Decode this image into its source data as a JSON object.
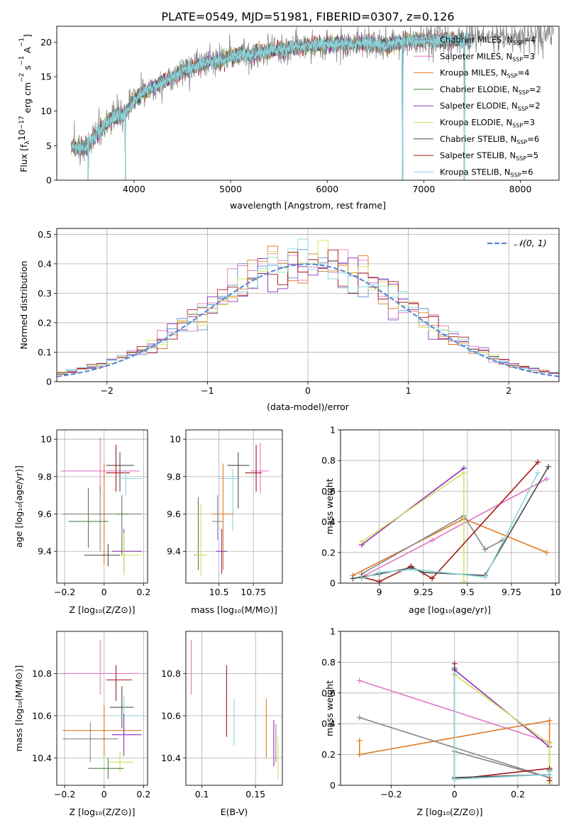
{
  "figure_title": "PLATE=0549, MJD=51981, FIBERID=0307, z=0.126",
  "colors": {
    "Chabrier MILES": "#888888",
    "Salpeter MILES": "#e377c2",
    "Kroupa MILES": "#e07b24",
    "Chabrier ELODIE": "#4f7f4f",
    "Salpeter ELODIE": "#8c2fb5",
    "Kroupa ELODIE": "#cfe35b",
    "Chabrier STELIB": "#4d4d4d",
    "Salpeter STELIB": "#a41a1a",
    "Kroupa STELIB": "#8ad6dc",
    "normal": "#5b8ad6"
  },
  "chart_data": [
    {
      "id": "spectrum",
      "type": "line",
      "xlabel": "wavelength [Angstrom, rest frame]",
      "ylabel": "Flux [f_λ10^-17 erg cm^-2 s^-1 A^-1]",
      "xlim": [
        3200,
        8400
      ],
      "ylim": [
        0,
        22.3
      ],
      "xticks": [
        4000,
        5000,
        6000,
        7000,
        8000
      ],
      "yticks": [
        0,
        5,
        10,
        15,
        20
      ],
      "legend": "top-right",
      "legend_entries": [
        {
          "base": "Chabrier MILES, N",
          "sub": "SSP",
          "tail": "=4",
          "color": "Chabrier MILES"
        },
        {
          "base": "Salpeter MILES, N",
          "sub": "SSP",
          "tail": "=3",
          "color": "Salpeter MILES"
        },
        {
          "base": "Kroupa MILES, N",
          "sub": "SSP",
          "tail": "=4",
          "color": "Kroupa MILES"
        },
        {
          "base": "Chabrier ELODIE, N",
          "sub": "SSP",
          "tail": "=2",
          "color": "Chabrier ELODIE"
        },
        {
          "base": "Salpeter ELODIE, N",
          "sub": "SSP",
          "tail": "=2",
          "color": "Salpeter ELODIE"
        },
        {
          "base": "Kroupa ELODIE, N",
          "sub": "SSP",
          "tail": "=3",
          "color": "Kroupa ELODIE"
        },
        {
          "base": "Chabrier STELIB, N",
          "sub": "SSP",
          "tail": "=6",
          "color": "Chabrier STELIB"
        },
        {
          "base": "Salpeter STELIB, N",
          "sub": "SSP",
          "tail": "=5",
          "color": "Salpeter STELIB"
        },
        {
          "base": "Kroupa STELIB, N",
          "sub": "SSP",
          "tail": "=6",
          "color": "Kroupa STELIB"
        }
      ],
      "continuum": [
        [
          3350,
          4.8
        ],
        [
          3500,
          4.6
        ],
        [
          3600,
          6.5
        ],
        [
          3700,
          8.0
        ],
        [
          3800,
          9.2
        ],
        [
          3900,
          9.5
        ],
        [
          4000,
          11.5
        ],
        [
          4100,
          12.8
        ],
        [
          4200,
          13.5
        ],
        [
          4300,
          14.2
        ],
        [
          4400,
          15.0
        ],
        [
          4500,
          15.8
        ],
        [
          4600,
          16.3
        ],
        [
          4700,
          16.8
        ],
        [
          4800,
          17.2
        ],
        [
          4900,
          17.3
        ],
        [
          5000,
          17.9
        ],
        [
          5100,
          18.2
        ],
        [
          5200,
          18.1
        ],
        [
          5300,
          18.4
        ],
        [
          5400,
          18.7
        ],
        [
          5500,
          19.0
        ],
        [
          5600,
          19.2
        ],
        [
          5800,
          19.4
        ],
        [
          6000,
          19.7
        ],
        [
          6200,
          19.7
        ],
        [
          6400,
          19.9
        ],
        [
          6600,
          19.5
        ],
        [
          6800,
          20.1
        ],
        [
          7000,
          20.2
        ],
        [
          7200,
          20.3
        ],
        [
          7400,
          20.3
        ],
        [
          7600,
          20.6
        ],
        [
          7800,
          20.7
        ],
        [
          8000,
          20.7
        ],
        [
          8200,
          21.0
        ],
        [
          8350,
          21.2
        ]
      ],
      "data_end_x": 7480,
      "gaps": [
        {
          "x": 3525,
          "min": 0
        },
        {
          "x": 3910,
          "min": 0
        },
        {
          "x": 6780,
          "min": 0
        },
        {
          "x": 7420,
          "min": 0
        }
      ]
    },
    {
      "id": "residuals",
      "type": "histogram",
      "xlabel": "(data-model)/error",
      "ylabel": "Normed distribution",
      "xlim": [
        -2.5,
        2.5
      ],
      "ylim": [
        0,
        0.52
      ],
      "xticks": [
        -2,
        -1,
        0,
        1,
        2
      ],
      "yticks": [
        0.0,
        0.1,
        0.2,
        0.3,
        0.4,
        0.5
      ],
      "grid": true,
      "legend": "top-right",
      "legend_label": "N(0,1)",
      "bin_width": 0.1,
      "curve": "standard normal"
    },
    {
      "id": "age_vs_Z",
      "type": "errorbar",
      "xlabel": "Z [log10(Z/Z⊙)]",
      "ylabel": "age [log10(age/yr)]",
      "xlim": [
        -0.24,
        0.22
      ],
      "ylim": [
        9.23,
        10.05
      ],
      "xticks": [
        -0.2,
        0.0,
        0.2
      ],
      "yticks": [
        9.4,
        9.6,
        9.8,
        10.0
      ],
      "grid": true,
      "points": [
        {
          "s": "Salpeter MILES",
          "x": -0.02,
          "xerr": [
            0.2,
            0.2
          ],
          "y": 9.83,
          "yerr": [
            0.12,
            0.18
          ]
        },
        {
          "s": "Chabrier STELIB",
          "x": 0.08,
          "xerr": [
            0.07,
            0.07
          ],
          "y": 9.86,
          "yerr": [
            0.14,
            0.07
          ]
        },
        {
          "s": "Salpeter STELIB",
          "x": 0.06,
          "xerr": [
            0.05,
            0.07
          ],
          "y": 9.82,
          "yerr": [
            0.1,
            0.15
          ]
        },
        {
          "s": "Kroupa STELIB",
          "x": 0.11,
          "xerr": [
            0.03,
            0.08
          ],
          "y": 9.79,
          "yerr": [
            0.09,
            0.05
          ]
        },
        {
          "s": "Kroupa MILES",
          "x": 0.0,
          "xerr": [
            0.21,
            0.19
          ],
          "y": 9.6,
          "yerr": [
            0.27,
            0.27
          ]
        },
        {
          "s": "Chabrier MILES",
          "x": -0.02,
          "xerr": [
            0.19,
            0.21
          ],
          "y": 9.6,
          "yerr": [
            0.2,
            0.15
          ]
        },
        {
          "s": "Chabrier ELODIE",
          "x": 0.09,
          "xerr": [
            0.03,
            0.03
          ],
          "y": 9.6,
          "yerr": [
            0.22,
            0.1
          ]
        },
        {
          "s": "Chabrier ELODIE",
          "x": -0.08,
          "xerr": [
            0.1,
            0.1
          ],
          "y": 9.56,
          "yerr": [
            0.14,
            0.18
          ]
        },
        {
          "s": "Salpeter ELODIE",
          "x": 0.1,
          "xerr": [
            0.06,
            0.09
          ],
          "y": 9.4,
          "yerr": [
            0.12,
            0.12
          ]
        },
        {
          "s": "Kroupa ELODIE",
          "x": 0.1,
          "xerr": [
            0.07,
            0.09
          ],
          "y": 9.38,
          "yerr": [
            0.11,
            0.12
          ]
        },
        {
          "s": "Chabrier STELIB",
          "x": 0.02,
          "xerr": [
            0.12,
            0.06
          ],
          "y": 9.38,
          "yerr": [
            0.06,
            0.06
          ]
        }
      ]
    },
    {
      "id": "age_vs_mass",
      "type": "errorbar",
      "xlabel": "mass [log10(M/M⊙)]",
      "xlim": [
        10.26,
        10.96
      ],
      "ylim": [
        9.23,
        10.05
      ],
      "xticks": [
        10.5,
        10.75
      ],
      "yticks": [
        9.4,
        9.6,
        9.8,
        10.0
      ],
      "grid": true,
      "points": [
        {
          "s": "Salpeter MILES",
          "x": 10.8,
          "xerr": [
            0.07,
            0.06
          ],
          "y": 9.83,
          "yerr": [
            0.12,
            0.15
          ]
        },
        {
          "s": "Salpeter STELIB",
          "x": 10.77,
          "xerr": [
            0.08,
            0.04
          ],
          "y": 9.82,
          "yerr": [
            0.1,
            0.15
          ]
        },
        {
          "s": "Chabrier STELIB",
          "x": 10.64,
          "xerr": [
            0.08,
            0.08
          ],
          "y": 9.86,
          "yerr": [
            0.23,
            0.07
          ]
        },
        {
          "s": "Kroupa STELIB",
          "x": 10.6,
          "xerr": [
            0.1,
            0.05
          ],
          "y": 9.79,
          "yerr": [
            0.28,
            0.05
          ]
        },
        {
          "s": "Kroupa MILES",
          "x": 10.53,
          "xerr": [
            0.08,
            0.08
          ],
          "y": 9.6,
          "yerr": [
            0.3,
            0.27
          ]
        },
        {
          "s": "Chabrier MILES",
          "x": 10.49,
          "xerr": [
            0.04,
            0.04
          ],
          "y": 9.56,
          "yerr": [
            0.1,
            0.14
          ]
        },
        {
          "s": "Salpeter ELODIE",
          "x": 10.52,
          "xerr": [
            0.04,
            0.04
          ],
          "y": 9.4,
          "yerr": [
            0.12,
            0.12
          ]
        },
        {
          "s": "Chabrier ELODIE",
          "x": 10.35,
          "xerr": [
            0.03,
            0.03
          ],
          "y": 9.38,
          "yerr": [
            0.08,
            0.31
          ]
        },
        {
          "s": "Kroupa ELODIE",
          "x": 10.37,
          "xerr": [
            0.04,
            0.04
          ],
          "y": 9.38,
          "yerr": [
            0.11,
            0.27
          ]
        }
      ]
    },
    {
      "id": "weight_vs_age",
      "type": "line",
      "xlabel": "age [log10(age/yr)]",
      "ylabel": "mass weight",
      "xlim": [
        8.78,
        10.02
      ],
      "ylim": [
        0,
        1.0
      ],
      "xticks": [
        9.0,
        9.25,
        9.5,
        9.75,
        10.0
      ],
      "yticks": [
        0.0,
        0.2,
        0.4,
        0.6,
        0.8,
        1.0
      ],
      "grid": true,
      "series": [
        {
          "s": "Salpeter MILES",
          "x": [
            8.9,
            9.3,
            9.95
          ],
          "y": [
            0.04,
            0.28,
            0.68
          ]
        },
        {
          "s": "Kroupa MILES",
          "x": [
            8.85,
            9.48,
            9.95
          ],
          "y": [
            0.05,
            0.42,
            0.2
          ]
        },
        {
          "s": "Chabrier MILES",
          "x": [
            8.9,
            9.48,
            9.6,
            9.7
          ],
          "y": [
            0.06,
            0.44,
            0.22,
            0.28
          ]
        },
        {
          "s": "Salpeter ELODIE",
          "x": [
            8.9,
            9.48
          ],
          "y": [
            0.25,
            0.75
          ]
        },
        {
          "s": "Kroupa ELODIE",
          "x": [
            8.9,
            9.48,
            9.48
          ],
          "y": [
            0.27,
            0.72,
            0.01
          ]
        },
        {
          "s": "Salpeter STELIB",
          "x": [
            8.9,
            9.0,
            9.18,
            9.3,
            9.9
          ],
          "y": [
            0.04,
            0.01,
            0.11,
            0.03,
            0.79
          ]
        },
        {
          "s": "Chabrier STELIB",
          "x": [
            8.85,
            9.0,
            9.18,
            9.25,
            9.6,
            9.96
          ],
          "y": [
            0.03,
            0.06,
            0.1,
            0.07,
            0.05,
            0.76
          ]
        },
        {
          "s": "Kroupa STELIB",
          "x": [
            8.9,
            9.0,
            9.2,
            9.6,
            9.9
          ],
          "y": [
            0.03,
            0.07,
            0.09,
            0.04,
            0.72
          ]
        }
      ]
    },
    {
      "id": "mass_vs_Z",
      "type": "errorbar",
      "xlabel": "Z [log10(Z/Z⊙)]",
      "ylabel": "mass [log10(M/M⊙)]",
      "xlim": [
        -0.24,
        0.22
      ],
      "ylim": [
        10.27,
        11.0
      ],
      "xticks": [
        -0.2,
        0.0,
        0.2
      ],
      "yticks": [
        10.4,
        10.6,
        10.8
      ],
      "grid": true,
      "points": [
        {
          "s": "Salpeter MILES",
          "x": -0.02,
          "xerr": [
            0.2,
            0.2
          ],
          "y": 10.8,
          "yerr": [
            0.1,
            0.16
          ]
        },
        {
          "s": "Salpeter STELIB",
          "x": 0.06,
          "xerr": [
            0.05,
            0.08
          ],
          "y": 10.77,
          "yerr": [
            0.1,
            0.07
          ]
        },
        {
          "s": "Chabrier STELIB",
          "x": 0.09,
          "xerr": [
            0.06,
            0.06
          ],
          "y": 10.64,
          "yerr": [
            0.1,
            0.1
          ]
        },
        {
          "s": "Kroupa STELIB",
          "x": 0.1,
          "xerr": [
            0.03,
            0.09
          ],
          "y": 10.6,
          "yerr": [
            0.1,
            0.09
          ]
        },
        {
          "s": "Kroupa MILES",
          "x": 0.0,
          "xerr": [
            0.21,
            0.19
          ],
          "y": 10.53,
          "yerr": [
            0.12,
            0.12
          ]
        },
        {
          "s": "Salpeter ELODIE",
          "x": 0.1,
          "xerr": [
            0.06,
            0.09
          ],
          "y": 10.51,
          "yerr": [
            0.1,
            0.1
          ]
        },
        {
          "s": "Chabrier MILES",
          "x": -0.07,
          "xerr": [
            0.14,
            0.14
          ],
          "y": 10.49,
          "yerr": [
            0.11,
            0.08
          ]
        },
        {
          "s": "Kroupa ELODIE",
          "x": 0.08,
          "xerr": [
            0.06,
            0.07
          ],
          "y": 10.38,
          "yerr": [
            0.05,
            0.05
          ]
        },
        {
          "s": "Chabrier ELODIE",
          "x": 0.02,
          "xerr": [
            0.1,
            0.08
          ],
          "y": 10.35,
          "yerr": [
            0.05,
            0.05
          ]
        }
      ]
    },
    {
      "id": "mass_vs_ebv",
      "type": "errorbar",
      "xlabel": "E(B-V)",
      "xlim": [
        0.085,
        0.175
      ],
      "ylim": [
        10.27,
        11.0
      ],
      "xticks": [
        0.1,
        0.15
      ],
      "yticks": [
        10.4,
        10.6,
        10.8
      ],
      "grid": true,
      "points": [
        {
          "s": "Salpeter MILES",
          "x": 0.09,
          "y": 10.83,
          "yerr": [
            0.13,
            0.13
          ]
        },
        {
          "s": "Salpeter STELIB",
          "x": 0.123,
          "y": 10.67,
          "yerr": [
            0.17,
            0.17
          ]
        },
        {
          "s": "Kroupa STELIB",
          "x": 0.13,
          "y": 10.57,
          "yerr": [
            0.11,
            0.11
          ]
        },
        {
          "s": "Kroupa MILES",
          "x": 0.16,
          "y": 10.54,
          "yerr": [
            0.14,
            0.14
          ]
        },
        {
          "s": "Salpeter ELODIE",
          "x": 0.167,
          "y": 10.47,
          "yerr": [
            0.11,
            0.11
          ]
        },
        {
          "s": "Chabrier MILES",
          "x": 0.169,
          "y": 10.47,
          "yerr": [
            0.09,
            0.09
          ]
        },
        {
          "s": "Kroupa ELODIE",
          "x": 0.171,
          "y": 10.4,
          "yerr": [
            0.1,
            0.1
          ]
        }
      ]
    },
    {
      "id": "weight_vs_Z",
      "type": "line",
      "xlabel": "Z [log10(Z/Z⊙)]",
      "ylabel": "mass weight",
      "xlim": [
        -0.36,
        0.33
      ],
      "ylim": [
        0,
        1.0
      ],
      "xticks": [
        -0.2,
        0.0,
        0.2
      ],
      "yticks": [
        0.0,
        0.2,
        0.4,
        0.6,
        0.8,
        1.0
      ],
      "grid": true,
      "series": [
        {
          "s": "Salpeter MILES",
          "x": [
            -0.3,
            0.3
          ],
          "y": [
            0.68,
            0.28
          ]
        },
        {
          "s": "Kroupa MILES",
          "x": [
            -0.3,
            -0.3,
            0.3,
            0.3
          ],
          "y": [
            0.29,
            0.2,
            0.42,
            0.05
          ]
        },
        {
          "s": "Chabrier MILES",
          "x": [
            -0.3,
            0.3,
            0.0,
            0.0
          ],
          "y": [
            0.44,
            0.05,
            0.22,
            0.04
          ]
        },
        {
          "s": "Salpeter ELODIE",
          "x": [
            0.0,
            0.3
          ],
          "y": [
            0.75,
            0.25
          ]
        },
        {
          "s": "Kroupa ELODIE",
          "x": [
            0.0,
            0.3,
            0.3
          ],
          "y": [
            0.72,
            0.27,
            0.01
          ]
        },
        {
          "s": "Salpeter STELIB",
          "x": [
            0.0,
            0.0,
            0.3,
            0.3
          ],
          "y": [
            0.79,
            0.04,
            0.11,
            0.03
          ]
        },
        {
          "s": "Chabrier STELIB",
          "x": [
            0.0,
            0.0,
            0.3,
            0.3
          ],
          "y": [
            0.76,
            0.05,
            0.07,
            0.1
          ]
        },
        {
          "s": "Kroupa STELIB",
          "x": [
            0.0,
            0.0,
            0.3,
            0.3
          ],
          "y": [
            0.72,
            0.04,
            0.07,
            0.09
          ]
        }
      ]
    }
  ]
}
